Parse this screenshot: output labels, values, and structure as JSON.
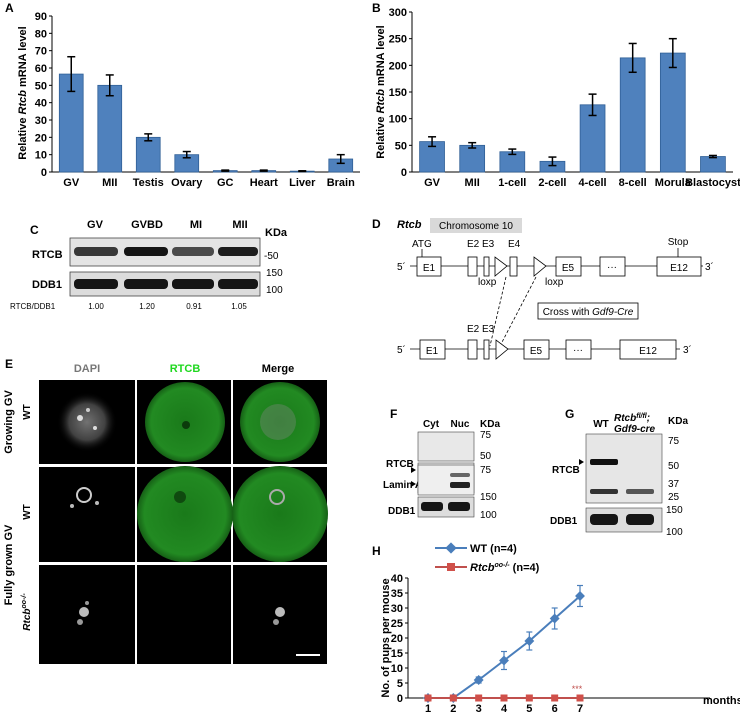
{
  "colors": {
    "bar": "#4f81bd",
    "bar_edge": "#2f5f96",
    "wt_line": "#4a7ebb",
    "ko_line": "#c0504d",
    "ko_marker": "#d0504a",
    "rtcb_green": "#1fd81f",
    "blot_band": "#1a1a1a"
  },
  "panels": {
    "A": "A",
    "B": "B",
    "C": "C",
    "D": "D",
    "E": "E",
    "F": "F",
    "G": "G",
    "H": "H"
  },
  "chart_data": [
    {
      "id": "A",
      "type": "bar",
      "ylabel_pre": "Relative ",
      "ylabel_gene": "Rtcb",
      "ylabel_post": " mRNA level",
      "ylim": [
        0,
        90
      ],
      "yticks": [
        "0",
        "10",
        "20",
        "30",
        "40",
        "50",
        "60",
        "70",
        "80",
        "90"
      ],
      "categories": [
        "GV",
        "MII",
        "Testis",
        "Ovary",
        "GC",
        "Heart",
        "Liver",
        "Brain"
      ],
      "values": [
        56.5,
        50,
        20,
        10,
        0.8,
        0.8,
        0.5,
        7.5
      ],
      "errors": [
        10,
        6,
        2,
        1.8,
        0.3,
        0.3,
        0.2,
        2.5
      ]
    },
    {
      "id": "B",
      "type": "bar",
      "ylabel_pre": "Relative ",
      "ylabel_gene": "Rtcb",
      "ylabel_post": " mRNA level",
      "ylim": [
        0,
        300
      ],
      "yticks": [
        "0",
        "50",
        "100",
        "150",
        "200",
        "250",
        "300"
      ],
      "categories": [
        "GV",
        "MII",
        "1-cell",
        "2-cell",
        "4-cell",
        "8-cell",
        "Morula",
        "Blastocyst"
      ],
      "values": [
        57,
        50,
        38,
        20,
        126,
        214,
        223,
        29
      ],
      "errors": [
        9,
        5,
        5,
        8,
        20,
        27,
        27,
        2
      ]
    },
    {
      "id": "H",
      "type": "line",
      "ylabel": "No. of pups per mouse",
      "xlabel": "months",
      "ylim": [
        0,
        40
      ],
      "yticks": [
        "0",
        "5",
        "10",
        "15",
        "20",
        "25",
        "30",
        "35",
        "40"
      ],
      "x": [
        1,
        2,
        3,
        4,
        5,
        6,
        7
      ],
      "xticks": [
        "1",
        "2",
        "3",
        "4",
        "5",
        "6",
        "7"
      ],
      "series": [
        {
          "name": "WT (n=4)",
          "values": [
            0,
            0,
            6,
            12.5,
            19,
            26.5,
            34
          ],
          "errors": [
            0,
            0,
            1,
            3,
            3,
            3.5,
            3.5
          ]
        },
        {
          "name_gene": "Rtcb",
          "name_sup": "oo-/-",
          "name_rest": " (n=4)",
          "values": [
            0,
            0,
            0,
            0,
            0,
            0,
            0
          ],
          "errors": [
            0,
            0,
            0,
            0,
            0,
            0,
            0
          ]
        }
      ],
      "annotation": "***"
    }
  ],
  "panelC": {
    "lanes": [
      "GV",
      "GVBD",
      "MI",
      "MII"
    ],
    "unit": "KDa",
    "rows": [
      "RTCB",
      "DDB1"
    ],
    "markers": [
      "-50",
      "150",
      "100"
    ],
    "ratio_label": "RTCB/DDB1",
    "ratios": [
      "1.00",
      "1.20",
      "0.91",
      "1.05"
    ],
    "rtcb_levels": [
      0.8,
      1.0,
      0.7,
      0.95
    ]
  },
  "panelD": {
    "gene": "Rtcb",
    "chrom": "Chromosome 10",
    "five": "5´",
    "three": "3´",
    "atg": "ATG",
    "stop": "Stop",
    "e1": "E1",
    "e2": "E2",
    "e3": "E3",
    "e4": "E4",
    "e5": "E5",
    "e12": "E12",
    "dots": "···",
    "loxp": "loxp",
    "cross_pre": "Cross with ",
    "cross_gene": "Gdf9-Cre"
  },
  "panelE": {
    "cols": [
      "DAPI",
      "RTCB",
      "Merge"
    ],
    "group1": "Growing GV",
    "group2": "Fully grown GV",
    "wt": "WT",
    "ko": "Rtcb",
    "ko_sup": "oo-/-"
  },
  "panelF": {
    "lanes": [
      "Cyt",
      "Nuc"
    ],
    "unit": "KDa",
    "rows": [
      "RTCB",
      "Lamin A/C",
      "DDB1"
    ],
    "markers": [
      "75",
      "50",
      "75",
      "150",
      "100"
    ]
  },
  "panelG": {
    "lanes_wt": "WT",
    "lane_ko_line1": "Rtcb",
    "lane_ko_sup": "fl/fl",
    "lane_ko_line1_end": ";",
    "lane_ko_line2": "Gdf9-cre",
    "unit": "KDa",
    "rows": [
      "RTCB",
      "DDB1"
    ],
    "markers": [
      "75",
      "50",
      "37",
      "25",
      "150",
      "100"
    ]
  }
}
